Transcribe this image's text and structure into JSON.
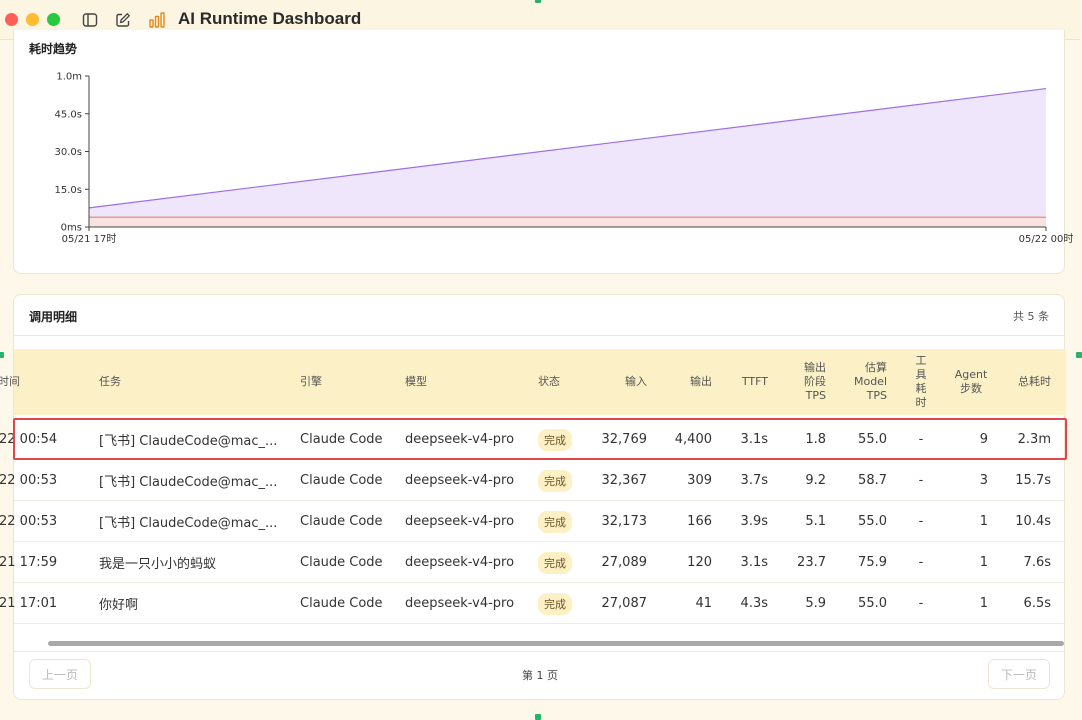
{
  "app": {
    "title": "AI Runtime Dashboard"
  },
  "chart_section": {
    "title": "耗时趋势"
  },
  "chart_data": {
    "type": "area",
    "x": [
      "05/21 17时",
      "05/22 00时"
    ],
    "y_ticks": [
      "0ms",
      "15.0s",
      "30.0s",
      "45.0s",
      "1.0m"
    ],
    "ylim_seconds": [
      0,
      60
    ],
    "series": [
      {
        "values_seconds": [
          7.6,
          55.0
        ],
        "color": "#9b6ef0",
        "fill": "#ede3fc"
      },
      {
        "values_seconds": [
          3.9,
          3.9
        ],
        "color": "#e9836b",
        "fill": "#f8e2de"
      }
    ],
    "grid": false
  },
  "table_section": {
    "title": "调用明细",
    "count": "共 5 条",
    "columns": {
      "time": "时间",
      "task": "任务",
      "engine": "引擎",
      "model": "模型",
      "status": "状态",
      "input": "输入",
      "output": "输出",
      "ttft": "TTFT",
      "output_tps_1": "输出",
      "output_tps_2": "阶段",
      "output_tps_3": "TPS",
      "model_tps_1": "估算",
      "model_tps_2": "Model",
      "model_tps_3": "TPS",
      "tool_1": "工",
      "tool_2": "具",
      "tool_3": "耗",
      "tool_4": "时",
      "agent_1": "Agent",
      "agent_2": "步数",
      "total": "总耗时"
    },
    "rows": [
      {
        "time": "22 00:54",
        "task": "[飞书] ClaudeCode@mac_...",
        "engine": "Claude Code",
        "model": "deepseek-v4-pro",
        "status": "完成",
        "input": "32,769",
        "output": "4,400",
        "ttft": "3.1s",
        "out_tps": "1.8",
        "model_tps": "55.0",
        "tool": "-",
        "agent": "9",
        "total": "2.3m"
      },
      {
        "time": "22 00:53",
        "task": "[飞书] ClaudeCode@mac_...",
        "engine": "Claude Code",
        "model": "deepseek-v4-pro",
        "status": "完成",
        "input": "32,367",
        "output": "309",
        "ttft": "3.7s",
        "out_tps": "9.2",
        "model_tps": "58.7",
        "tool": "-",
        "agent": "3",
        "total": "15.7s"
      },
      {
        "time": "22 00:53",
        "task": "[飞书] ClaudeCode@mac_...",
        "engine": "Claude Code",
        "model": "deepseek-v4-pro",
        "status": "完成",
        "input": "32,173",
        "output": "166",
        "ttft": "3.9s",
        "out_tps": "5.1",
        "model_tps": "55.0",
        "tool": "-",
        "agent": "1",
        "total": "10.4s"
      },
      {
        "time": "21 17:59",
        "task": "我是一只小小的蚂蚁",
        "engine": "Claude Code",
        "model": "deepseek-v4-pro",
        "status": "完成",
        "input": "27,089",
        "output": "120",
        "ttft": "3.1s",
        "out_tps": "23.7",
        "model_tps": "75.9",
        "tool": "-",
        "agent": "1",
        "total": "7.6s"
      },
      {
        "time": "21 17:01",
        "task": "你好啊",
        "engine": "Claude Code",
        "model": "deepseek-v4-pro",
        "status": "完成",
        "input": "27,087",
        "output": "41",
        "ttft": "4.3s",
        "out_tps": "5.9",
        "model_tps": "55.0",
        "tool": "-",
        "agent": "1",
        "total": "6.5s"
      }
    ],
    "pager": {
      "prev": "上一页",
      "info": "第 1 页",
      "next": "下一页"
    }
  }
}
